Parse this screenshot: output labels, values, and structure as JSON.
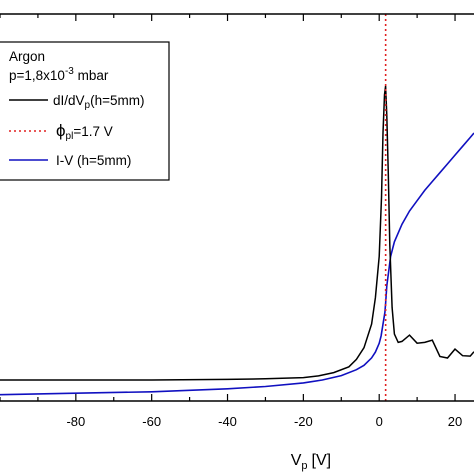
{
  "chart_data": {
    "type": "line",
    "title": "",
    "xlabel": {
      "main": "V",
      "sub": "p",
      "unit": "[V]"
    },
    "ylabel": "",
    "xlim": [
      -100,
      25
    ],
    "x_ticks": [
      -80,
      -60,
      -40,
      -20,
      0,
      20
    ],
    "x_tick_labels": [
      "-80",
      "-60",
      "-40",
      "-20",
      "0",
      "20"
    ],
    "y_ticks_visible": false,
    "grid": false,
    "legend": {
      "placement": "top-left",
      "title": "Argon",
      "pressure": {
        "prefix": "p=1,8x10",
        "exponent": "-3",
        "suffix": " mbar"
      },
      "entries": [
        {
          "key": "didv",
          "main": "dI/dV",
          "sub": "p",
          "suffix": "(h=5mm)",
          "color": "#000000",
          "style": "solid"
        },
        {
          "key": "phi",
          "main": "ϕ",
          "sub": "pl",
          "suffix": "=1.7 V",
          "color": "#e02020",
          "style": "dotted"
        },
        {
          "key": "iv",
          "main": "I-V (h=5mm)",
          "sub": "",
          "suffix": "",
          "color": "#1010c0",
          "style": "solid"
        }
      ]
    },
    "series": [
      {
        "key": "didv",
        "name": "dI/dV_p(h=5mm)",
        "color": "#000000",
        "x": [
          -100,
          -80,
          -60,
          -40,
          -30,
          -20,
          -16,
          -12,
          -8,
          -6,
          -4,
          -2,
          -1,
          0,
          0.6,
          1.0,
          1.4,
          1.7,
          2.0,
          2.4,
          2.8,
          3.4,
          4,
          5,
          6,
          8,
          10,
          12,
          14,
          16,
          18,
          20,
          22,
          24,
          25
        ],
        "y": [
          0.0,
          0.0,
          0.0,
          0.002,
          0.004,
          0.008,
          0.014,
          0.025,
          0.045,
          0.07,
          0.11,
          0.19,
          0.28,
          0.42,
          0.62,
          0.84,
          0.97,
          1.0,
          0.9,
          0.7,
          0.46,
          0.24,
          0.18,
          0.16,
          0.15,
          0.14,
          0.13,
          0.12,
          0.11,
          0.1,
          0.1,
          0.09,
          0.08,
          0.08,
          0.08
        ]
      },
      {
        "key": "iv",
        "name": "I-V (h=5mm)",
        "color": "#1010c0",
        "x": [
          -100,
          -80,
          -60,
          -40,
          -30,
          -20,
          -15,
          -10,
          -6,
          -4,
          -2,
          -1,
          0,
          0.5,
          1,
          1.5,
          1.7,
          2,
          3,
          4,
          6,
          8,
          10,
          12,
          14,
          16,
          18,
          20,
          22,
          24,
          25
        ],
        "y": [
          -0.05,
          -0.045,
          -0.04,
          -0.03,
          -0.022,
          -0.01,
          0.0,
          0.015,
          0.035,
          0.05,
          0.075,
          0.095,
          0.125,
          0.15,
          0.19,
          0.23,
          0.26,
          0.32,
          0.42,
          0.47,
          0.53,
          0.575,
          0.61,
          0.645,
          0.675,
          0.705,
          0.735,
          0.765,
          0.795,
          0.825,
          0.84
        ]
      }
    ],
    "vlines": [
      {
        "key": "phi",
        "name": "phi_pl=1.7 V",
        "x": 1.7,
        "color": "#e02020",
        "style": "dotted"
      }
    ]
  }
}
